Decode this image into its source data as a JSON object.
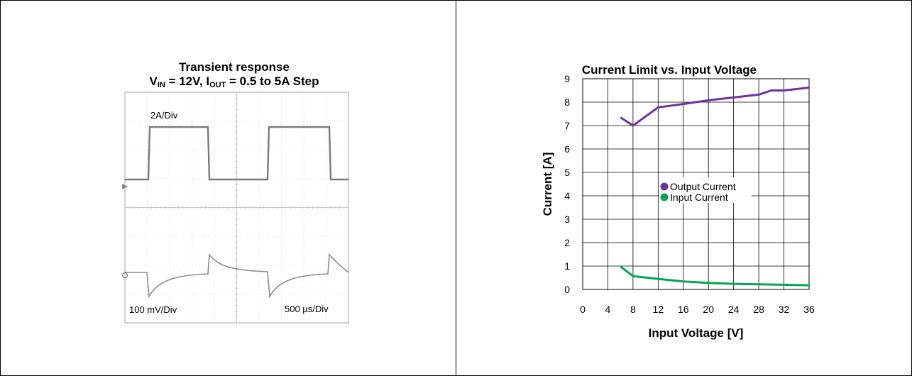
{
  "scope": {
    "title_line1": "Transient response",
    "title_v": "V",
    "title_v_sub": "IN",
    "title_mid": " = 12V, I",
    "title_i_sub": "OUT",
    "title_end": " = 0.5 to 5A Step",
    "label_current": "2A/Div",
    "label_voltage": "100 mV/Div",
    "label_time": "500 µs/Div",
    "trace_current_color": "#7a7a7a",
    "trace_voltage_color": "#8c8c8c"
  },
  "chart_data": {
    "type": "line",
    "title": "Current Limit vs. Input Voltage",
    "xlabel": "Input Voltage [V]",
    "ylabel": "Current [A]",
    "xlim": [
      0,
      36
    ],
    "ylim": [
      0,
      9
    ],
    "xticks": [
      0,
      4,
      8,
      12,
      16,
      20,
      24,
      28,
      32,
      36
    ],
    "yticks": [
      0,
      1,
      2,
      3,
      4,
      5,
      6,
      7,
      8,
      9
    ],
    "grid": true,
    "legend_position": "center",
    "series": [
      {
        "name": "Output Current",
        "color": "#7030a0",
        "x": [
          6,
          8,
          12,
          16,
          20,
          24,
          28,
          30,
          32,
          36
        ],
        "y": [
          7.35,
          7.0,
          7.78,
          7.92,
          8.08,
          8.2,
          8.32,
          8.5,
          8.5,
          8.62
        ]
      },
      {
        "name": "Input Current",
        "color": "#00a651",
        "x": [
          6,
          8,
          12,
          16,
          20,
          24,
          28,
          32,
          36
        ],
        "y": [
          0.98,
          0.57,
          0.45,
          0.34,
          0.28,
          0.24,
          0.22,
          0.2,
          0.18
        ]
      }
    ]
  }
}
